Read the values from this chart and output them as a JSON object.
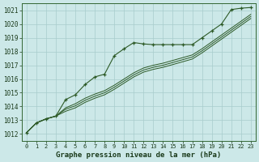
{
  "title": "Graphe pression niveau de la mer (hPa)",
  "xlabel_hours": [
    0,
    1,
    2,
    3,
    4,
    5,
    6,
    7,
    8,
    9,
    10,
    11,
    12,
    13,
    14,
    15,
    16,
    17,
    18,
    19,
    20,
    21,
    22,
    23
  ],
  "ylim": [
    1011.5,
    1021.5
  ],
  "yticks": [
    1012,
    1013,
    1014,
    1015,
    1016,
    1017,
    1018,
    1019,
    1020,
    1021
  ],
  "bg_color": "#cce8e8",
  "grid_color": "#a8cccc",
  "line_color": "#2d5a27",
  "line1": [
    1012.1,
    1012.8,
    1013.1,
    1013.3,
    1014.5,
    1014.85,
    1015.6,
    1016.15,
    1016.35,
    1017.7,
    1018.2,
    1018.65,
    1018.55,
    1018.5,
    1018.5,
    1018.5,
    1018.5,
    1018.5,
    1019.0,
    1019.5,
    1020.0,
    1021.05,
    1021.15,
    1021.2
  ],
  "line2": [
    1012.1,
    1012.8,
    1013.1,
    1013.3,
    1013.9,
    1014.2,
    1014.6,
    1014.9,
    1015.15,
    1015.55,
    1016.0,
    1016.45,
    1016.8,
    1017.0,
    1017.15,
    1017.35,
    1017.55,
    1017.75,
    1018.2,
    1018.7,
    1019.2,
    1019.7,
    1020.2,
    1020.7
  ],
  "line3": [
    1012.1,
    1012.8,
    1013.1,
    1013.3,
    1013.8,
    1014.05,
    1014.45,
    1014.75,
    1015.0,
    1015.4,
    1015.85,
    1016.3,
    1016.65,
    1016.85,
    1017.0,
    1017.2,
    1017.4,
    1017.6,
    1018.05,
    1018.55,
    1019.05,
    1019.55,
    1020.05,
    1020.55
  ],
  "line4": [
    1012.1,
    1012.8,
    1013.1,
    1013.3,
    1013.65,
    1013.9,
    1014.3,
    1014.6,
    1014.85,
    1015.25,
    1015.7,
    1016.15,
    1016.5,
    1016.7,
    1016.85,
    1017.05,
    1017.25,
    1017.45,
    1017.9,
    1018.4,
    1018.9,
    1019.4,
    1019.9,
    1020.4
  ]
}
